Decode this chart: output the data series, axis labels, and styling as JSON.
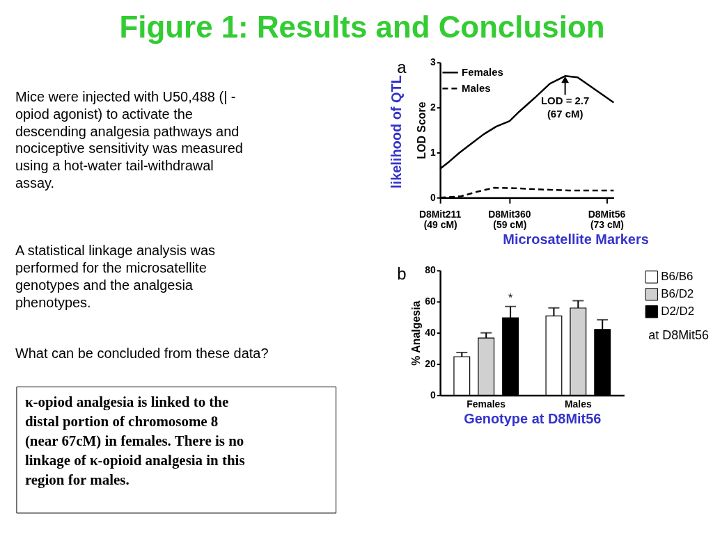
{
  "chart_data": [
    {
      "type": "other",
      "title": "Figure 1: Results and Conclusion",
      "annotations": [
        "Mice were injected with U50,488 (| -\nopiod agonist) to activate the\ndescending analgesia pathways and\nnociceptive sensitivity was measured\nusing a hot-water tail-withdrawal\nassay.",
        "A statistical linkage analysis was\nperformed for the microsatellite\ngenotypes and the analgesia\nphenotypes.",
        "What can be concluded from these data?",
        "κ-opiod analgesia is linked to the\ndistal portion of chromosome 8\n(near 67cM) in females.  There is no\nlinkage of κ-opioid analgesia in this\nregion for males."
      ]
    },
    {
      "type": "line",
      "xlabel": "Microsatellite Markers",
      "ylabel": "LOD Score",
      "xlim": [
        49,
        74
      ],
      "ylim": [
        0,
        3
      ],
      "xticks": [
        {
          "value": 49,
          "label": "(49 cM)"
        },
        {
          "value": 59,
          "label": "(59 cM)"
        },
        {
          "value": 73,
          "label": "(73 cM)"
        }
      ],
      "yticks": [
        0,
        1,
        2,
        3
      ],
      "grid": false,
      "legend": "top left",
      "marker": "none",
      "series": [
        {
          "name": "Females",
          "color": "#000000",
          "line_style": "solid",
          "x": [
            49,
            50.3,
            51.8,
            53.5,
            55.3,
            57.1,
            59,
            60.4,
            62.8,
            64.8,
            67,
            68.8,
            71.6,
            74
          ],
          "values": [
            0.64,
            0.8,
            1.0,
            1.2,
            1.41,
            1.58,
            1.7,
            1.91,
            2.24,
            2.53,
            2.7,
            2.67,
            2.37,
            2.11
          ]
        },
        {
          "name": "Males",
          "color": "#000000",
          "line_style": "dashed",
          "x": [
            49,
            52,
            54.3,
            56.8,
            59.6,
            63.6,
            67.6,
            74
          ],
          "values": [
            0,
            0.03,
            0.13,
            0.22,
            0.21,
            0.18,
            0.16,
            0.16
          ]
        }
      ],
      "annotations": [
        "a",
        {
          "text": "LOD = 2.7\n(67 cM)",
          "x": 67,
          "y": 2.7
        },
        "likelihood of QTL",
        "D8Mit211",
        "D8Mit360",
        "D8Mit56"
      ]
    },
    {
      "type": "bar",
      "xlabel": "Genotype at D8Mit56",
      "ylabel": "% Analgesia",
      "categories": [
        "Females",
        "Males"
      ],
      "ylim": [
        0,
        80
      ],
      "yticks": [
        0,
        20,
        40,
        60,
        80
      ],
      "grid": false,
      "legend": "right",
      "series": [
        {
          "name": "B6/B6",
          "color": "#ffffff",
          "values": [
            24.7,
            50.8
          ],
          "errors": [
            [
              24.7,
              27.4
            ],
            [
              50.8,
              56
            ]
          ]
        },
        {
          "name": "B6/D2",
          "color": "#d0d0d0",
          "values": [
            36.7,
            55.9
          ],
          "errors": [
            [
              36.7,
              40
            ],
            [
              55.9,
              60.6
            ]
          ]
        },
        {
          "name": "D2/D2",
          "color": "#000000",
          "values": [
            49.6,
            42.2
          ],
          "errors": [
            [
              49.6,
              56.9
            ],
            [
              42.2,
              48.4
            ]
          ]
        }
      ],
      "annotations": [
        "b",
        "*",
        "at D8Mit56"
      ]
    }
  ]
}
